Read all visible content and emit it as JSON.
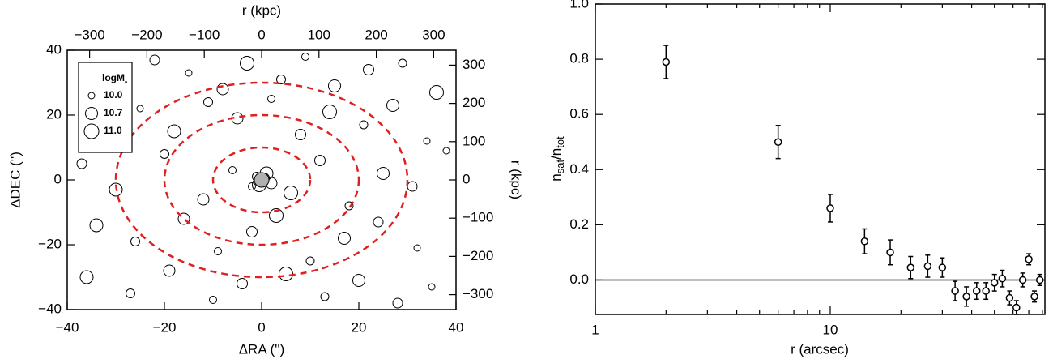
{
  "chart_data": [
    {
      "type": "bubble",
      "xlabel": "ΔRA ('')",
      "ylabel": "ΔDEC ('')",
      "x2label": "r (kpc)",
      "y2label": "r (kpc)",
      "xlim": [
        -40,
        40
      ],
      "ylim": [
        -40,
        40
      ],
      "xticks": [
        {
          "value": -40,
          "label": "−40"
        },
        {
          "value": -20,
          "label": "−20"
        },
        0,
        20,
        40
      ],
      "yticks": [
        {
          "value": -40,
          "label": "−40"
        },
        {
          "value": -20,
          "label": "−20"
        },
        0,
        20,
        40
      ],
      "x2lim": [
        -339,
        339
      ],
      "y2lim": [
        -339,
        339
      ],
      "x2ticks": [
        {
          "value": -300,
          "label": "−300"
        },
        {
          "value": -200,
          "label": "−200"
        },
        {
          "value": -100,
          "label": "−100"
        },
        0,
        100,
        200,
        300
      ],
      "y2ticks": [
        {
          "value": -300,
          "label": "−300"
        },
        {
          "value": -200,
          "label": "−200"
        },
        {
          "value": -100,
          "label": "−100"
        },
        0,
        100,
        200,
        300
      ],
      "center": [
        0,
        0
      ],
      "center_color": "#b0b0b0",
      "rings": {
        "radii": [
          10,
          20,
          30
        ],
        "color": "#e02020"
      },
      "series": [
        {
          "color": "#000000",
          "x": [
            -35,
            -28,
            -22,
            -15,
            -8,
            -3,
            4,
            9,
            15,
            22,
            29,
            36,
            -33,
            -25,
            -18,
            -11,
            -5,
            2,
            8,
            14,
            21,
            27,
            34,
            -37,
            -30,
            -20,
            -12,
            -6,
            6,
            12,
            18,
            25,
            31,
            38,
            -34,
            -26,
            -16,
            -9,
            -2,
            3,
            10,
            17,
            24,
            32,
            -36,
            -27,
            -19,
            -10,
            -4,
            5,
            13,
            20,
            28,
            35,
            1,
            -1,
            2,
            -2,
            0.5,
            -0.5
          ],
          "y": [
            35,
            30,
            37,
            33,
            28,
            36,
            31,
            38,
            29,
            34,
            36,
            27,
            18,
            22,
            15,
            24,
            19,
            25,
            14,
            21,
            17,
            23,
            12,
            5,
            -3,
            8,
            -6,
            3,
            -4,
            6,
            -8,
            2,
            -2,
            9,
            -14,
            -19,
            -12,
            -22,
            -16,
            -11,
            -25,
            -18,
            -13,
            -21,
            -30,
            -35,
            -28,
            -37,
            -32,
            -29,
            -36,
            -31,
            -38,
            -33,
            2,
            1,
            -1,
            -2,
            0.5,
            -1.5
          ],
          "size": [
            10.2,
            10.8,
            10.4,
            10.0,
            10.6,
            10.9,
            10.3,
            10.1,
            10.7,
            10.5,
            10.2,
            10.9,
            10.4,
            10.0,
            10.8,
            10.3,
            10.6,
            10.1,
            10.5,
            10.9,
            10.2,
            10.7,
            10.0,
            10.4,
            10.8,
            10.3,
            10.6,
            10.1,
            10.9,
            10.5,
            10.2,
            10.7,
            10.4,
            10.0,
            10.8,
            10.3,
            10.6,
            10.1,
            10.5,
            10.9,
            10.2,
            10.7,
            10.4,
            10.0,
            10.8,
            10.3,
            10.6,
            10.1,
            10.5,
            10.9,
            10.2,
            10.7,
            10.4,
            10.0,
            10.8,
            10.3,
            10.6,
            10.1,
            10.5,
            10.9
          ]
        }
      ],
      "legend": {
        "position": "upper left",
        "title": "logM",
        "title_sub": "•",
        "entries": [
          {
            "value": 10.0,
            "label": "10.0"
          },
          {
            "value": 10.7,
            "label": "10.7"
          },
          {
            "value": 11.0,
            "label": "11.0"
          }
        ]
      }
    },
    {
      "type": "errorbar",
      "xlabel": "r (arcsec)",
      "ylabel": [
        "n",
        "sat",
        "/n",
        "tot"
      ],
      "xlog": true,
      "xlim": [
        1,
        82
      ],
      "ylim": [
        -0.125,
        1.0
      ],
      "xticks": [
        1,
        10
      ],
      "xminorticks": [
        2,
        3,
        4,
        5,
        6,
        7,
        8,
        9,
        20,
        30,
        40,
        50,
        60,
        70,
        80
      ],
      "yticks": [
        {
          "value": 0,
          "label": "0.0"
        },
        {
          "value": 0.2,
          "label": "0.2"
        },
        {
          "value": 0.4,
          "label": "0.4"
        },
        {
          "value": 0.6,
          "label": "0.6"
        },
        {
          "value": 0.8,
          "label": "0.8"
        },
        {
          "value": 1.0,
          "label": "1.0"
        }
      ],
      "hline": 0,
      "color": "#000000",
      "x": [
        2,
        6,
        10,
        14,
        18,
        22,
        26,
        30,
        34,
        38,
        42,
        46,
        50,
        54,
        58,
        62,
        66,
        70,
        74,
        78
      ],
      "values": [
        0.79,
        0.5,
        0.26,
        0.14,
        0.1,
        0.045,
        0.05,
        0.045,
        -0.04,
        -0.06,
        -0.04,
        -0.04,
        -0.01,
        0.005,
        -0.065,
        -0.1,
        0.0,
        0.075,
        -0.06,
        0.0
      ],
      "errors": [
        0.06,
        0.06,
        0.05,
        0.045,
        0.045,
        0.04,
        0.04,
        0.035,
        0.035,
        0.035,
        0.03,
        0.03,
        0.03,
        0.03,
        0.025,
        0.025,
        0.025,
        0.02,
        0.02,
        0.02
      ]
    }
  ]
}
